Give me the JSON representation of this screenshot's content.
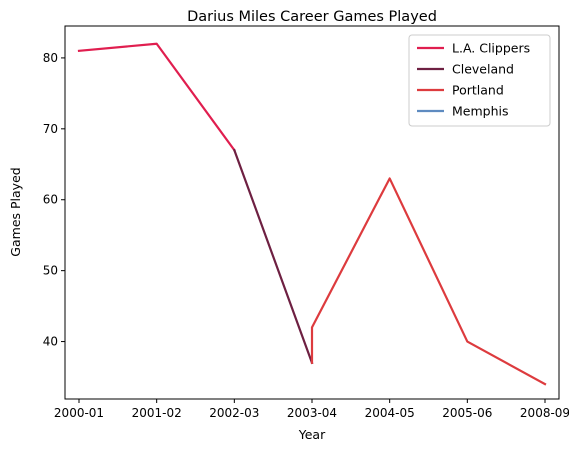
{
  "chart_data": {
    "type": "line",
    "title": "Darius Miles Career Games Played",
    "xlabel": "Year",
    "ylabel": "Games Played",
    "categories": [
      "2000-01",
      "2001-02",
      "2002-03",
      "2003-04",
      "2004-05",
      "2005-06",
      "2008-09"
    ],
    "ylim": [
      31.9,
      84.5
    ],
    "yticks": [
      40,
      50,
      60,
      70,
      80
    ],
    "grid": false,
    "legend_position": "top-right",
    "series": [
      {
        "name": "L.A. Clippers",
        "color": "#E01E4F",
        "points": [
          {
            "x": "2000-01",
            "y": 81
          },
          {
            "x": "2001-02",
            "y": 82
          },
          {
            "x": "2002-03",
            "y": 67
          }
        ]
      },
      {
        "name": "Cleveland",
        "color": "#6E2042",
        "points": [
          {
            "x": "2002-03",
            "y": 67
          },
          {
            "x": "2003-04",
            "y": 37
          }
        ]
      },
      {
        "name": "Portland",
        "color": "#DD3B3E",
        "points": [
          {
            "x": "2003-04",
            "y": 37
          },
          {
            "x": "2003-04",
            "y": 42
          },
          {
            "x": "2004-05",
            "y": 63
          },
          {
            "x": "2005-06",
            "y": 40
          },
          {
            "x": "2008-09",
            "y": 34
          }
        ]
      },
      {
        "name": "Memphis",
        "color": "#5E8BC0",
        "points": []
      }
    ]
  }
}
